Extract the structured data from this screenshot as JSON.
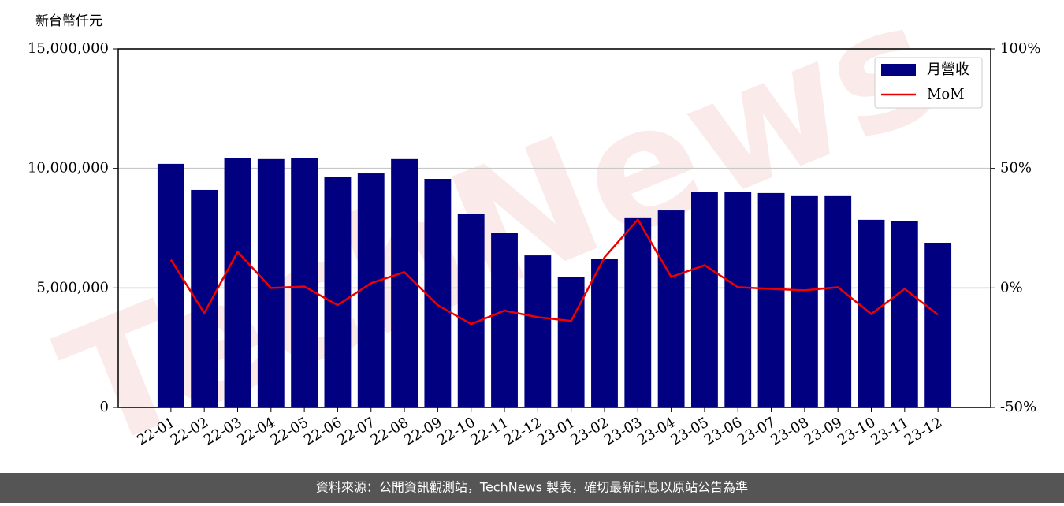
{
  "chart_data": {
    "type": "bar-line",
    "y_label": "新台幣仟元",
    "watermark": "TechNews",
    "footer": "資料來源：公開資訊觀測站，TechNews 製表，確切最新訊息以原站公告為準",
    "categories": [
      "22-01",
      "22-02",
      "22-03",
      "22-04",
      "22-05",
      "22-06",
      "22-07",
      "22-08",
      "22-09",
      "22-10",
      "22-11",
      "22-12",
      "23-01",
      "23-02",
      "23-03",
      "23-04",
      "23-05",
      "23-06",
      "23-07",
      "23-08",
      "23-09",
      "23-10",
      "23-11",
      "23-12"
    ],
    "series": [
      {
        "name": "月營收",
        "type": "bar",
        "color": "#000080",
        "axis": "y",
        "values": [
          10190000,
          9100000,
          10450000,
          10390000,
          10450000,
          9630000,
          9790000,
          10390000,
          9560000,
          8080000,
          7290000,
          6360000,
          5470000,
          6200000,
          7950000,
          8240000,
          9000000,
          9000000,
          8970000,
          8840000,
          8840000,
          7850000,
          7810000,
          6890000
        ]
      },
      {
        "name": "MoM",
        "type": "line",
        "color": "#ee0000",
        "axis": "y2",
        "values": [
          11.8,
          -10.5,
          15.1,
          0,
          0.6,
          -7.2,
          2.0,
          6.6,
          -7.2,
          -15.1,
          -9.5,
          -12.2,
          -13.8,
          12.8,
          28.6,
          4.6,
          9.5,
          0.3,
          -0.4,
          -1.0,
          0.3,
          -10.9,
          -0.4,
          -11.2
        ]
      }
    ],
    "ylim": [
      0,
      15000000
    ],
    "yticks": [
      0,
      {
        "value": 5000000,
        "label": "5,000,000"
      },
      {
        "value": 10000000,
        "label": "10,000,000"
      },
      {
        "value": 15000000,
        "label": "15,000,000"
      }
    ],
    "y2lim": [
      -50,
      100
    ],
    "y2ticks": [
      {
        "value": -50,
        "label": "-50%"
      },
      {
        "value": 0,
        "label": "0%"
      },
      {
        "value": 50,
        "label": "50%"
      },
      {
        "value": 100,
        "label": "100%"
      }
    ],
    "grid": true,
    "legend": "upper right"
  }
}
